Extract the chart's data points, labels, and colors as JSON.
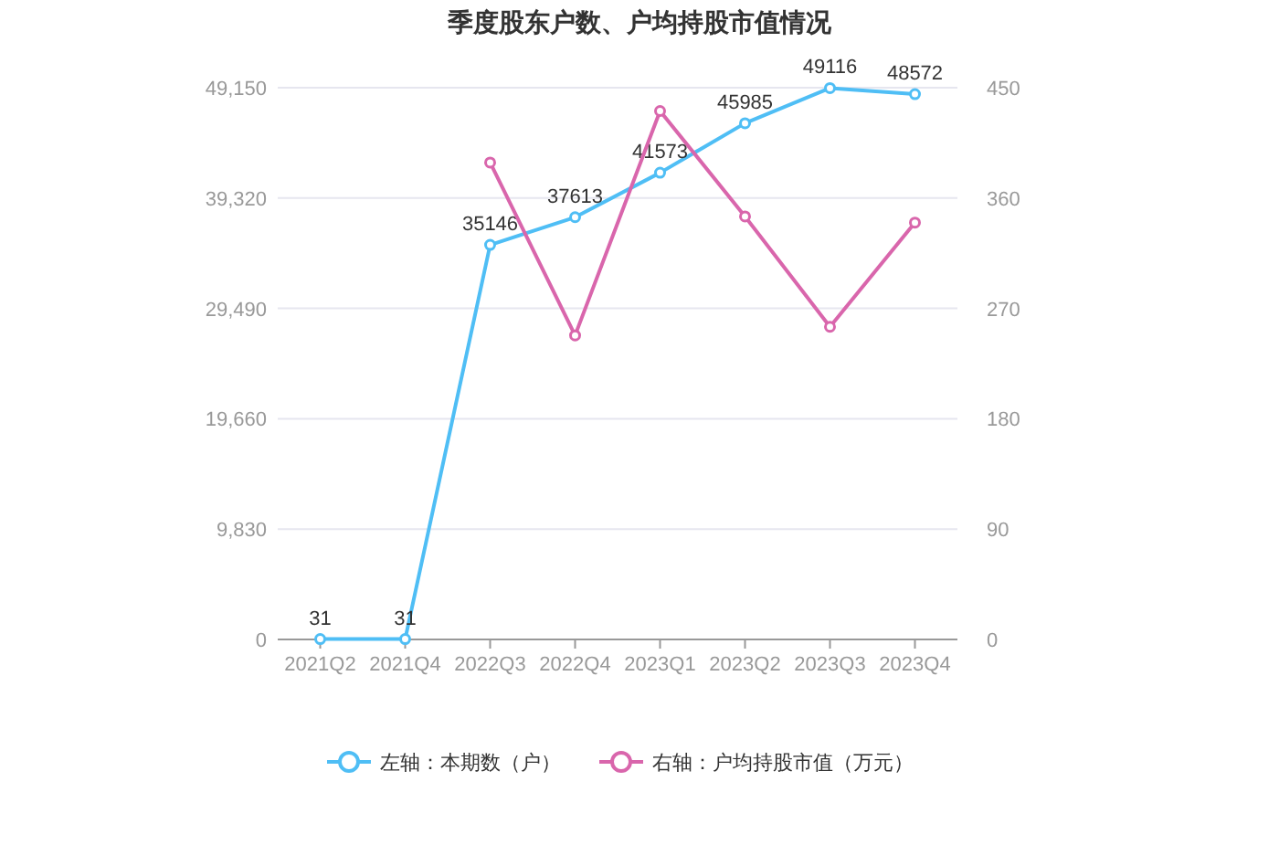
{
  "chart_data": {
    "type": "line",
    "title": "季度股东户数、户均持股市值情况",
    "categories": [
      "2021Q2",
      "2021Q4",
      "2022Q3",
      "2022Q4",
      "2023Q1",
      "2023Q2",
      "2023Q3",
      "2023Q4"
    ],
    "series": [
      {
        "name": "左轴：本期数（户）",
        "color": "#4fbef5",
        "values": [
          31,
          31,
          35146,
          37613,
          41573,
          45985,
          49116,
          48572
        ],
        "value_labels": [
          "31",
          "31",
          "35146",
          "37613",
          "41573",
          "45985",
          "49116",
          "48572"
        ]
      },
      {
        "name": "右轴：户均持股市值（万元）",
        "color": "#d966ac",
        "axis": "y2",
        "values": [
          null,
          null,
          389,
          248,
          431,
          345,
          255,
          340
        ]
      }
    ],
    "ylim": [
      0,
      49150
    ],
    "yticks": [
      0,
      {
        "value": 9830,
        "label": "9,830"
      },
      {
        "value": 19660,
        "label": "19,660"
      },
      {
        "value": 29490,
        "label": "29,490"
      },
      {
        "value": 39320,
        "label": "39,320"
      },
      {
        "value": 49150,
        "label": "49,150"
      }
    ],
    "y2lim": [
      0,
      450
    ],
    "y2ticks": [
      0,
      90,
      180,
      270,
      360,
      450
    ],
    "grid": "y",
    "legend": "bottom",
    "marker": "circle",
    "line_style": "solid"
  }
}
